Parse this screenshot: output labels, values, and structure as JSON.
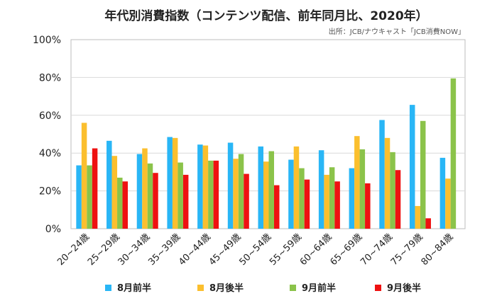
{
  "chart_data": {
    "type": "bar",
    "title": "年代別消費指数（コンテンツ配信、前年同月比、2020年）",
    "source": "出所：JCB/ナウキャスト「JCB消費NOW」",
    "xlabel": "",
    "ylabel": "",
    "ylim": [
      0,
      100
    ],
    "yticks": [
      "0%",
      "20%",
      "40%",
      "60%",
      "80%",
      "100%"
    ],
    "ytick_values": [
      0,
      20,
      40,
      60,
      80,
      100
    ],
    "grid": true,
    "legend_position": "bottom",
    "categories": [
      "20~24歳",
      "25~29歳",
      "30~34歳",
      "35~39歳",
      "40~44歳",
      "45~49歳",
      "50~54歳",
      "55~59歳",
      "60~64歳",
      "65~69歳",
      "70~74歳",
      "75~79歳",
      "80~84歳"
    ],
    "series": [
      {
        "name": "8月前半",
        "color": "#29b6f6",
        "values": [
          33.5,
          46.5,
          39.5,
          48.5,
          44.5,
          45.5,
          43.5,
          36.5,
          41.5,
          32,
          57.5,
          65.5,
          37.5
        ]
      },
      {
        "name": "8月後半",
        "color": "#fbbf2e",
        "values": [
          56,
          38.5,
          42.5,
          48,
          44,
          37,
          35.5,
          43.5,
          28.5,
          49,
          48,
          12,
          26.5
        ]
      },
      {
        "name": "9月前半",
        "color": "#8bc34a",
        "values": [
          33.5,
          27,
          34.5,
          35,
          36,
          39.5,
          41,
          32,
          32.5,
          42,
          40.5,
          57,
          79.5
        ]
      },
      {
        "name": "9月後半",
        "color": "#ee1111",
        "values": [
          42.5,
          25,
          29.5,
          28.5,
          36,
          29,
          23,
          26,
          25,
          24,
          31,
          5.5,
          null
        ]
      }
    ]
  }
}
